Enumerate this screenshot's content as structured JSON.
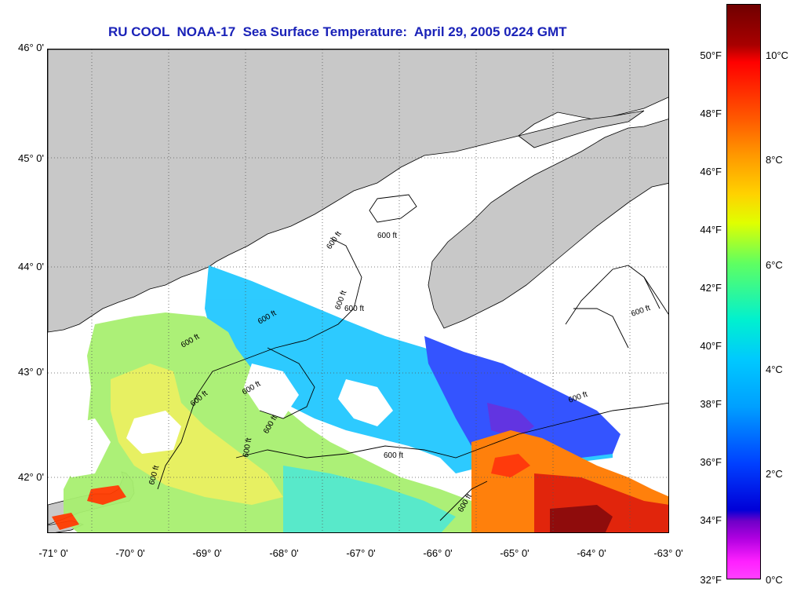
{
  "title": "RU COOL  NOAA-17  Sea Surface Temperature:  April 29, 2005 0224 GMT",
  "lat_labels": [
    "46° 0'",
    "45° 0'",
    "44° 0'",
    "43° 0'",
    "42° 0'"
  ],
  "lon_labels": [
    "-71° 0'",
    "-70° 0'",
    "-69° 0'",
    "-68° 0'",
    "-67° 0'",
    "-66° 0'",
    "-65° 0'",
    "-64° 0'",
    "-63° 0'"
  ],
  "contour_labels": [
    "600 ft",
    "600 ft",
    "600 ft",
    "600 ft",
    "600 ft",
    "600 ft",
    "600 ft",
    "600 ft",
    "600 ft",
    "600 ft",
    "600 ft",
    "600 ft",
    "600 ft",
    "600 ft",
    "600 ft"
  ],
  "colorbar": {
    "fahrenheit": [
      "50°F",
      "48°F",
      "46°F",
      "44°F",
      "42°F",
      "40°F",
      "38°F",
      "36°F",
      "34°F",
      "32°F"
    ],
    "celsius": [
      "10°C",
      "8°C",
      "6°C",
      "4°C",
      "2°C",
      "0°C"
    ]
  },
  "colors": {
    "land": "#c8c8c8",
    "cloud": "#ffffff",
    "title": "#1a22b8",
    "grid": "#555555"
  }
}
